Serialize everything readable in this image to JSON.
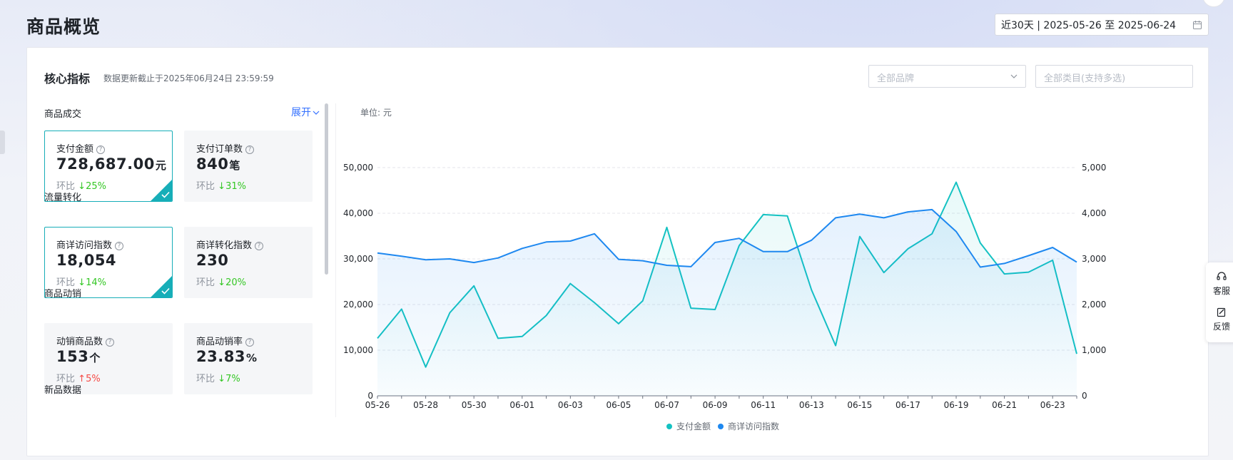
{
  "page": {
    "title": "商品概览"
  },
  "date_picker": {
    "value": "近30天 | 2025-05-26 至 2025-06-24"
  },
  "core": {
    "title": "核心指标",
    "subtitle": "数据更新截止于2025年06月24日 23:59:59",
    "brand_placeholder": "全部品牌",
    "category_placeholder": "全部类目(支持多选)",
    "expand_label": "展开"
  },
  "groups": [
    {
      "label": "商品成交",
      "metrics": [
        {
          "name": "支付金额",
          "value": "728,687.00",
          "unit": "元",
          "cmp_label": "环比",
          "pct": "25%",
          "trend": "down",
          "selected": true
        },
        {
          "name": "支付订单数",
          "value": "840",
          "unit": "笔",
          "cmp_label": "环比",
          "pct": "31%",
          "trend": "down",
          "selected": false
        }
      ]
    },
    {
      "label": "流量转化",
      "metrics": [
        {
          "name": "商详访问指数",
          "value": "18,054",
          "unit": "",
          "cmp_label": "环比",
          "pct": "14%",
          "trend": "down",
          "selected": true
        },
        {
          "name": "商详转化指数",
          "value": "230",
          "unit": "",
          "cmp_label": "环比",
          "pct": "20%",
          "trend": "down",
          "selected": false
        }
      ]
    },
    {
      "label": "商品动销",
      "metrics": [
        {
          "name": "动销商品数",
          "value": "153",
          "unit": "个",
          "cmp_label": "环比",
          "pct": "5%",
          "trend": "up",
          "selected": false
        },
        {
          "name": "商品动销率",
          "value": "23.83",
          "unit": "%",
          "cmp_label": "环比",
          "pct": "7%",
          "trend": "down",
          "selected": false
        }
      ]
    },
    {
      "label": "新品数据",
      "metrics": []
    }
  ],
  "chart_data": {
    "type": "line",
    "unit_label": "单位: 元",
    "x": [
      "05-26",
      "05-27",
      "05-28",
      "05-29",
      "05-30",
      "05-31",
      "06-01",
      "06-02",
      "06-03",
      "06-04",
      "06-05",
      "06-06",
      "06-07",
      "06-08",
      "06-09",
      "06-10",
      "06-11",
      "06-12",
      "06-13",
      "06-14",
      "06-15",
      "06-16",
      "06-17",
      "06-18",
      "06-19",
      "06-20",
      "06-21",
      "06-22",
      "06-23",
      "06-24"
    ],
    "x_tick_labels": [
      "05-26",
      "05-28",
      "05-30",
      "06-01",
      "06-03",
      "06-05",
      "06-07",
      "06-09",
      "06-11",
      "06-13",
      "06-15",
      "06-17",
      "06-19",
      "06-21",
      "06-23"
    ],
    "y_left": {
      "ticks": [
        "0",
        "10,000",
        "20,000",
        "30,000",
        "40,000",
        "50,000"
      ],
      "range": [
        0,
        50000
      ]
    },
    "y_right": {
      "ticks": [
        "0",
        "1,000",
        "2,000",
        "3,000",
        "4,000",
        "5,000"
      ],
      "range": [
        0,
        5000
      ]
    },
    "grid": true,
    "legend_position": "bottom",
    "series": [
      {
        "name": "支付金额",
        "axis": "left",
        "color": "#14c2c2",
        "values": [
          12600,
          19000,
          6300,
          18200,
          24100,
          12600,
          13000,
          17600,
          24600,
          20400,
          15800,
          20800,
          36900,
          19200,
          18900,
          32900,
          39700,
          39400,
          23200,
          11000,
          34900,
          27000,
          32200,
          35500,
          46800,
          33500,
          26700,
          27100,
          29700,
          9200
        ]
      },
      {
        "name": "商详访问指数",
        "axis": "right",
        "color": "#1e88f0",
        "values": [
          3130,
          3060,
          2980,
          3000,
          2920,
          3020,
          3230,
          3370,
          3390,
          3550,
          2990,
          2960,
          2860,
          2830,
          3360,
          3450,
          3160,
          3160,
          3410,
          3900,
          3980,
          3900,
          4030,
          4080,
          3600,
          2820,
          2900,
          3070,
          3250,
          2930
        ]
      }
    ]
  },
  "side_tools": [
    {
      "icon": "headset-icon",
      "label": "客服"
    },
    {
      "icon": "feedback-icon",
      "label": "反馈"
    }
  ]
}
